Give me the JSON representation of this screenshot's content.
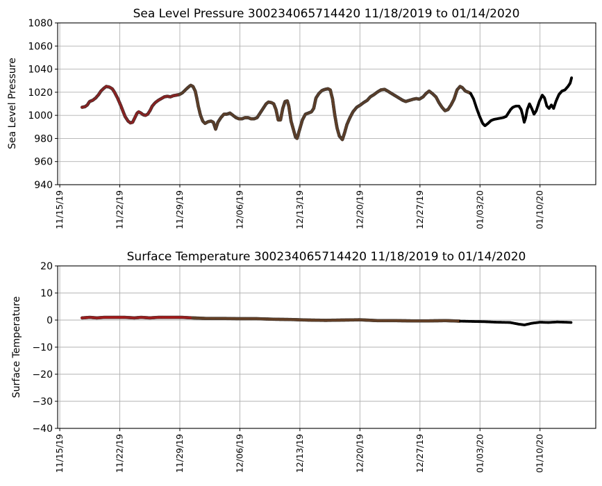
{
  "colors": {
    "red": "#ff0000",
    "brown": "#8b4513",
    "black": "#000000",
    "outline": "#3a3a3a"
  },
  "chart_data": [
    {
      "type": "scatter",
      "title": "Sea Level Pressure 300234065714420  11/18/2019 to 01/14/2020",
      "xlabel": "",
      "ylabel": "Sea Level Pressure",
      "ylim": [
        940,
        1080
      ],
      "yticks": [
        "940",
        "960",
        "980",
        "1000",
        "1020",
        "1040",
        "1060",
        "1080"
      ],
      "ytick_values": [
        940,
        960,
        980,
        1000,
        1020,
        1040,
        1060,
        1080
      ],
      "xlim_days_from_11_15_19": [
        -0.25,
        62.5
      ],
      "xticks": [
        "11/15/19",
        "11/22/19",
        "11/29/19",
        "12/06/19",
        "12/13/19",
        "12/20/19",
        "12/27/19",
        "01/03/20",
        "01/10/20"
      ],
      "xtick_days": [
        0,
        7,
        14,
        21,
        28,
        35,
        42,
        49,
        56
      ],
      "grid": true,
      "series": [
        {
          "name": "segment-1",
          "color": "red",
          "points": [
            [
              2.6,
              1007
            ],
            [
              3.0,
              1007.5
            ],
            [
              3.3,
              1009
            ],
            [
              3.6,
              1012
            ],
            [
              4.0,
              1013
            ],
            [
              4.4,
              1015
            ],
            [
              4.8,
              1018
            ],
            [
              5.1,
              1021
            ],
            [
              5.5,
              1023.5
            ],
            [
              5.8,
              1025
            ],
            [
              6.2,
              1024.5
            ],
            [
              6.6,
              1023
            ],
            [
              6.9,
              1020
            ],
            [
              7.3,
              1015
            ],
            [
              7.7,
              1009
            ],
            [
              8.0,
              1004
            ],
            [
              8.3,
              999
            ],
            [
              8.7,
              995
            ],
            [
              9.0,
              993.5
            ],
            [
              9.3,
              994
            ],
            [
              9.6,
              998
            ],
            [
              9.9,
              1002
            ],
            [
              10.1,
              1003
            ],
            [
              10.4,
              1002
            ],
            [
              10.7,
              1000.5
            ],
            [
              11.0,
              1000
            ],
            [
              11.3,
              1001
            ],
            [
              11.6,
              1004
            ],
            [
              11.9,
              1008
            ],
            [
              12.3,
              1011
            ],
            [
              12.7,
              1013
            ],
            [
              13.1,
              1014.5
            ],
            [
              13.5,
              1016
            ],
            [
              13.9,
              1016.5
            ],
            [
              14.3,
              1016
            ],
            [
              14.7,
              1017
            ],
            [
              15.1,
              1017.5
            ],
            [
              15.5,
              1018
            ]
          ]
        },
        {
          "name": "segment-2",
          "color": "brown",
          "points": []
        },
        {
          "name": "segment-3",
          "color": "black",
          "points": []
        }
      ]
    },
    {
      "type": "scatter",
      "title": "Surface Temperature 300234065714420  11/18/2019 to 01/14/2020",
      "xlabel": "",
      "ylabel": "Surface Temperature",
      "ylim": [
        -40,
        20
      ],
      "yticks": [
        "−40",
        "−30",
        "−20",
        "−10",
        "0",
        "10",
        "20"
      ],
      "ytick_values": [
        -40,
        -30,
        -20,
        -10,
        0,
        10,
        20
      ],
      "xlim_days_from_11_15_19": [
        -0.25,
        62.5
      ],
      "xticks": [
        "11/15/19",
        "11/22/19",
        "11/29/19",
        "12/06/19",
        "12/13/19",
        "12/20/19",
        "12/27/19",
        "01/03/20",
        "01/10/20"
      ],
      "xtick_days": [
        0,
        7,
        14,
        21,
        28,
        35,
        42,
        49,
        56
      ],
      "grid": true,
      "series": [
        {
          "name": "segment-1",
          "color": "red",
          "points": [
            [
              2.6,
              0.8
            ],
            [
              3.5,
              1.0
            ],
            [
              4.3,
              0.8
            ],
            [
              5.2,
              1.0
            ],
            [
              6.5,
              1.0
            ],
            [
              7.5,
              1.0
            ],
            [
              8.7,
              0.8
            ],
            [
              9.5,
              1.0
            ],
            [
              10.5,
              0.8
            ],
            [
              11.5,
              1.0
            ],
            [
              13.0,
              1.0
            ],
            [
              14.2,
              1.0
            ],
            [
              15.5,
              0.8
            ]
          ]
        },
        {
          "name": "segment-2",
          "color": "brown",
          "points": [
            [
              15.5,
              0.8
            ],
            [
              17,
              0.6
            ],
            [
              19,
              0.6
            ],
            [
              21,
              0.5
            ],
            [
              23,
              0.5
            ],
            [
              25,
              0.3
            ],
            [
              27,
              0.2
            ],
            [
              29,
              0
            ],
            [
              31,
              -0.1
            ],
            [
              33,
              0
            ],
            [
              35,
              0.1
            ],
            [
              37,
              -0.2
            ],
            [
              39,
              -0.2
            ],
            [
              41,
              -0.3
            ],
            [
              43,
              -0.3
            ],
            [
              45,
              -0.2
            ],
            [
              46.7,
              -0.4
            ]
          ]
        },
        {
          "name": "segment-3",
          "color": "black",
          "points": [
            [
              46.7,
              -0.4
            ],
            [
              48,
              -0.5
            ],
            [
              49.5,
              -0.6
            ],
            [
              51,
              -0.8
            ],
            [
              52.5,
              -0.9
            ],
            [
              53.5,
              -1.5
            ],
            [
              54.2,
              -1.8
            ],
            [
              55,
              -1.2
            ],
            [
              56,
              -0.8
            ],
            [
              57,
              -0.9
            ],
            [
              58,
              -0.7
            ],
            [
              59,
              -0.8
            ],
            [
              59.7,
              -0.9
            ]
          ]
        }
      ]
    }
  ]
}
